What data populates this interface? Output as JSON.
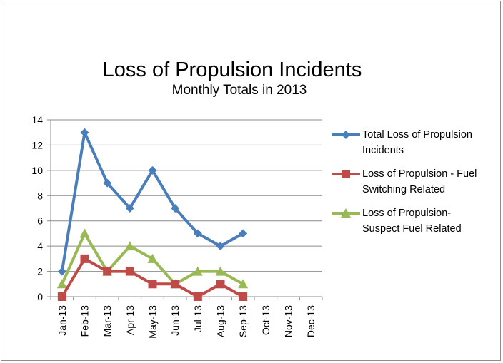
{
  "chart_data": {
    "type": "line",
    "title": "Loss of Propulsion Incidents",
    "subtitle": "Monthly Totals in 2013",
    "categories": [
      "Jan-13",
      "Feb-13",
      "Mar-13",
      "Apr-13",
      "May-13",
      "Jun-13",
      "Jul-13",
      "Aug-13",
      "Sep-13",
      "Oct-13",
      "Nov-13",
      "Dec-13"
    ],
    "ylim": [
      0,
      14
    ],
    "yticks": [
      "0",
      "2",
      "4",
      "6",
      "8",
      "10",
      "12",
      "14"
    ],
    "grid": true,
    "legend_position": "right",
    "series": [
      {
        "name": "Total Loss of Propulsion Incidents",
        "color": "#4a7ebb",
        "marker": "diamond",
        "values": [
          2,
          13,
          9,
          7,
          10,
          7,
          5,
          4,
          5,
          null,
          null,
          null
        ]
      },
      {
        "name": "Loss of Propulsion - Fuel Switching Related",
        "color": "#be4b48",
        "marker": "square",
        "values": [
          0,
          3,
          2,
          2,
          1,
          1,
          0,
          1,
          0,
          null,
          null,
          null
        ]
      },
      {
        "name": "Loss of Propulsion- Suspect Fuel Related",
        "color": "#98b954",
        "marker": "triangle",
        "values": [
          1,
          5,
          2,
          4,
          3,
          1,
          2,
          2,
          1,
          null,
          null,
          null
        ]
      }
    ]
  },
  "legend": {
    "items": [
      {
        "line1": "Total Loss of Propulsion",
        "line2": "Incidents"
      },
      {
        "line1": "Loss of Propulsion - Fuel",
        "line2": "Switching Related"
      },
      {
        "line1": "Loss of Propulsion-",
        "line2": "Suspect Fuel Related"
      }
    ]
  }
}
